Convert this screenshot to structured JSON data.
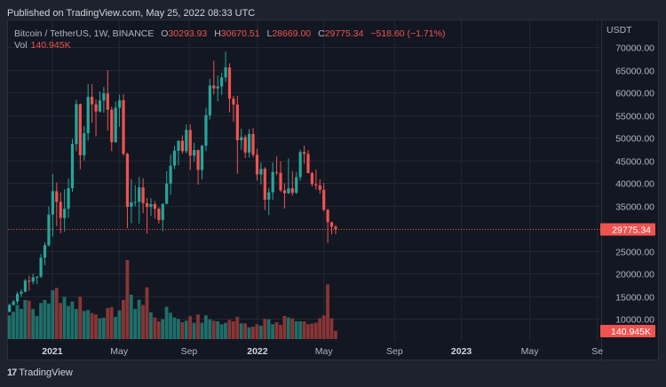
{
  "published": "Published on TradingView.com, May 25, 2022 08:33 UTC",
  "legend": {
    "symbol": "Bitcoin / TetherUS, 1W, BINANCE",
    "o_label": "O",
    "o": "30293.93",
    "h_label": "H",
    "h": "30670.51",
    "l_label": "L",
    "l": "28669.00",
    "c_label": "C",
    "c": "29775.34",
    "change": "−518.60 (−1.71%)",
    "vol_label": "Vol",
    "vol": "140.945K"
  },
  "branding": {
    "logo_mark": "17",
    "name": "TradingView"
  },
  "colors": {
    "up": "#26a69a",
    "down": "#ef5350",
    "up_vol": "#1f6f6a",
    "down_vol": "#8a3535",
    "bg": "#131722",
    "grid": "#232733"
  },
  "chart_data": {
    "type": "candlestick",
    "title": "Bitcoin / TetherUS, 1W, BINANCE",
    "interval": "1W",
    "first_week": "2020-10-19",
    "last_week": "2022-05-23",
    "currency": "USDT",
    "ylim": [
      5000,
      75000
    ],
    "y_ticks": [
      70000,
      65000,
      60000,
      55000,
      50000,
      45000,
      40000,
      35000,
      25000,
      20000,
      15000,
      10000
    ],
    "y_tick_labels": [
      "70000.00",
      "65000.00",
      "60000.00",
      "55000.00",
      "50000.00",
      "45000.00",
      "40000.00",
      "35000.00",
      "25000.00",
      "20000.00",
      "15000.00",
      "10000.00"
    ],
    "last_price": 29775.34,
    "last_price_label": "29775.34",
    "last_volume_label": "140.945K",
    "x_ticks": [
      {
        "label": "2021",
        "weeks_from_start": 10.9,
        "bold": true
      },
      {
        "label": "May",
        "weeks_from_start": 27.9,
        "bold": false
      },
      {
        "label": "Sep",
        "weeks_from_start": 45.7,
        "bold": false
      },
      {
        "label": "2022",
        "weeks_from_start": 63.1,
        "bold": true
      },
      {
        "label": "May",
        "weeks_from_start": 80.0,
        "bold": false
      },
      {
        "label": "Sep",
        "weeks_from_start": 98.0,
        "bold": false
      },
      {
        "label": "2023",
        "weeks_from_start": 115.0,
        "bold": true
      },
      {
        "label": "May",
        "weeks_from_start": 132.4,
        "bold": false
      },
      {
        "label": "Se",
        "weeks_from_start": 149.6,
        "bold": false
      }
    ],
    "candles_ohlc": [
      [
        11500,
        13350,
        11400,
        13030
      ],
      [
        13030,
        14100,
        12900,
        13800
      ],
      [
        13800,
        15970,
        13200,
        15480
      ],
      [
        15480,
        16480,
        14800,
        15960
      ],
      [
        15960,
        18800,
        15800,
        18400
      ],
      [
        18400,
        19500,
        16200,
        18180
      ],
      [
        18180,
        19900,
        17570,
        19150
      ],
      [
        19150,
        19420,
        17600,
        19270
      ],
      [
        19270,
        24300,
        19000,
        23480
      ],
      [
        23480,
        26900,
        21800,
        26250
      ],
      [
        26250,
        34800,
        25900,
        33000
      ],
      [
        33000,
        41950,
        28130,
        38150
      ],
      [
        38150,
        40100,
        30420,
        35800
      ],
      [
        35800,
        37850,
        28850,
        32260
      ],
      [
        32260,
        38600,
        29240,
        34280
      ],
      [
        34280,
        40950,
        32300,
        38830
      ],
      [
        38830,
        49700,
        37990,
        48580
      ],
      [
        48580,
        58350,
        47000,
        57400
      ],
      [
        57400,
        57530,
        43000,
        46100
      ],
      [
        46100,
        52600,
        44950,
        50970
      ],
      [
        50970,
        61800,
        49300,
        59000
      ],
      [
        59000,
        61800,
        53270,
        57350
      ],
      [
        57350,
        58400,
        50300,
        55770
      ],
      [
        55770,
        60200,
        55500,
        58200
      ],
      [
        58200,
        61200,
        55500,
        59750
      ],
      [
        59750,
        64850,
        51500,
        56150
      ],
      [
        56150,
        56800,
        47000,
        49000
      ],
      [
        49000,
        58000,
        48800,
        56600
      ],
      [
        56600,
        59500,
        52400,
        58250
      ],
      [
        58250,
        59600,
        46000,
        46400
      ],
      [
        46400,
        46650,
        30000,
        34700
      ],
      [
        34700,
        40800,
        31100,
        35700
      ],
      [
        35700,
        39500,
        34800,
        35800
      ],
      [
        35800,
        41300,
        31000,
        39000
      ],
      [
        39000,
        41000,
        33300,
        35500
      ],
      [
        35500,
        36700,
        28800,
        34700
      ],
      [
        34700,
        36600,
        32700,
        35300
      ],
      [
        35300,
        35950,
        32100,
        34250
      ],
      [
        34250,
        34600,
        31000,
        31800
      ],
      [
        31800,
        35400,
        29280,
        35400
      ],
      [
        35400,
        42600,
        35200,
        39850
      ],
      [
        39850,
        46300,
        37350,
        43800
      ],
      [
        43800,
        48200,
        43000,
        47100
      ],
      [
        47100,
        49400,
        43900,
        49300
      ],
      [
        49300,
        50500,
        46500,
        47000
      ],
      [
        47000,
        52900,
        46500,
        51700
      ],
      [
        51700,
        52950,
        42850,
        46000
      ],
      [
        46000,
        48850,
        44700,
        47250
      ],
      [
        47250,
        47350,
        39600,
        42850
      ],
      [
        42850,
        48400,
        40750,
        48200
      ],
      [
        48200,
        56600,
        47000,
        54950
      ],
      [
        54950,
        62950,
        54000,
        61500
      ],
      [
        61500,
        67000,
        59500,
        60850
      ],
      [
        60850,
        63700,
        58000,
        61300
      ],
      [
        61300,
        64300,
        59400,
        63300
      ],
      [
        63300,
        69000,
        62300,
        65500
      ],
      [
        65500,
        66400,
        55600,
        58600
      ],
      [
        58600,
        59250,
        53500,
        57300
      ],
      [
        57300,
        59200,
        42000,
        49400
      ],
      [
        49400,
        51950,
        47300,
        50100
      ],
      [
        50100,
        50600,
        45500,
        46700
      ],
      [
        46700,
        51900,
        45600,
        50800
      ],
      [
        50800,
        52100,
        45700,
        46200
      ],
      [
        46200,
        47550,
        40500,
        41850
      ],
      [
        41850,
        44500,
        39650,
        43100
      ],
      [
        43100,
        43500,
        34000,
        36280
      ],
      [
        36280,
        38900,
        32900,
        37900
      ],
      [
        37900,
        44500,
        36200,
        42400
      ],
      [
        42400,
        45850,
        41700,
        42200
      ],
      [
        42200,
        44750,
        38000,
        38350
      ],
      [
        38350,
        39900,
        34320,
        37700
      ],
      [
        37700,
        45400,
        37550,
        38800
      ],
      [
        38800,
        42600,
        37150,
        37800
      ],
      [
        37800,
        42400,
        37550,
        41260
      ],
      [
        41260,
        47300,
        40500,
        46800
      ],
      [
        46800,
        48200,
        44200,
        46400
      ],
      [
        46400,
        47200,
        42100,
        42150
      ],
      [
        42150,
        42450,
        39200,
        39700
      ],
      [
        39700,
        42980,
        38500,
        39450
      ],
      [
        39450,
        40800,
        37600,
        38450
      ],
      [
        38450,
        40000,
        33700,
        34050
      ],
      [
        34050,
        34250,
        26700,
        31300
      ],
      [
        31300,
        31450,
        28650,
        30290
      ],
      [
        30293.93,
        30670.51,
        28669.0,
        29775.34
      ]
    ],
    "volume_k": [
      404,
      465,
      581,
      515,
      667,
      657,
      515,
      394,
      616,
      667,
      606,
      833,
      874,
      616,
      722,
      566,
      641,
      515,
      722,
      480,
      495,
      444,
      419,
      354,
      364,
      530,
      545,
      379,
      490,
      667,
      1348,
      758,
      515,
      672,
      581,
      884,
      455,
      369,
      303,
      338,
      550,
      449,
      369,
      343,
      288,
      313,
      389,
      278,
      419,
      278,
      404,
      338,
      313,
      303,
      253,
      278,
      328,
      303,
      379,
      268,
      268,
      202,
      212,
      253,
      227,
      343,
      338,
      253,
      288,
      242,
      394,
      369,
      354,
      303,
      303,
      303,
      253,
      263,
      278,
      354,
      404,
      934,
      354,
      140.945
    ]
  }
}
